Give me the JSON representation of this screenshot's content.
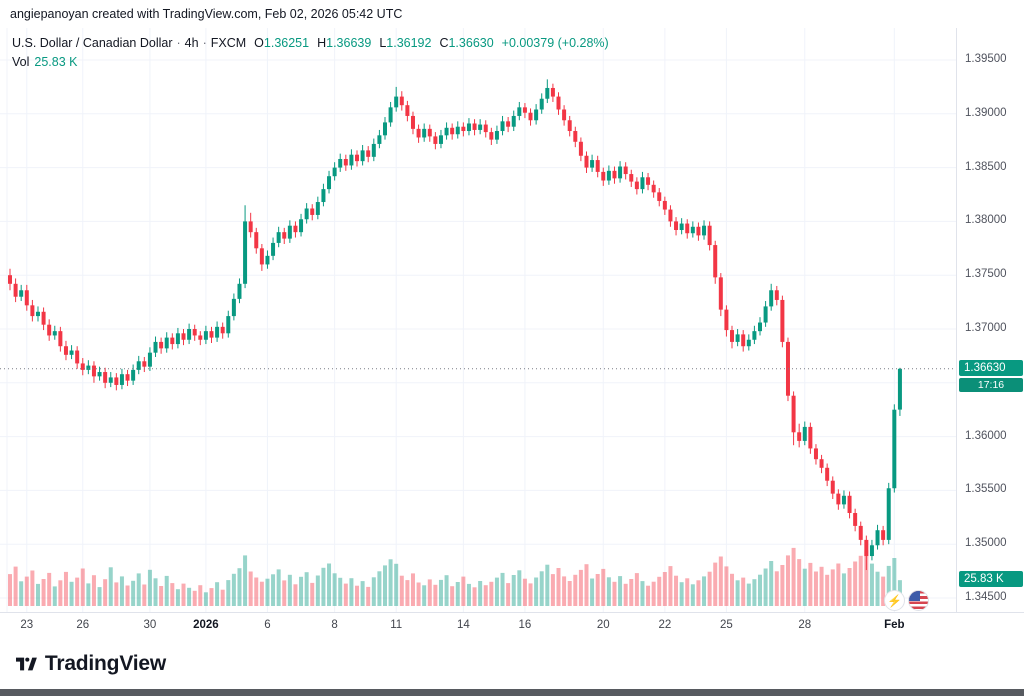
{
  "attribution": "angiepanoyan created with TradingView.com, Feb 02, 2026 05:42 UTC",
  "legend": {
    "symbol": "U.S. Dollar / Canadian Dollar",
    "sep": "·",
    "interval": "4h",
    "exchange": "FXCM",
    "ohlc": {
      "o_label": "O",
      "o": "1.36251",
      "h_label": "H",
      "h": "1.36639",
      "l_label": "L",
      "l": "1.36192",
      "c_label": "C",
      "c": "1.36630",
      "change": "+0.00379 (+0.28%)"
    },
    "vol_label": "Vol",
    "vol_value": "25.83 K"
  },
  "badges": {
    "price": "1.36630",
    "countdown": "17:16",
    "volume": "25.83 K"
  },
  "price_axis": {
    "labels": [
      {
        "text": "1.39500",
        "value": 1.395
      },
      {
        "text": "1.39000",
        "value": 1.39
      },
      {
        "text": "1.38500",
        "value": 1.385
      },
      {
        "text": "1.38000",
        "value": 1.38
      },
      {
        "text": "1.37500",
        "value": 1.375
      },
      {
        "text": "1.37000",
        "value": 1.37
      },
      {
        "text": "1.36000",
        "value": 1.36
      },
      {
        "text": "1.35500",
        "value": 1.355
      },
      {
        "text": "1.35000",
        "value": 1.35
      },
      {
        "text": "1.34500",
        "value": 1.345
      }
    ]
  },
  "colors": {
    "up": "#089981",
    "down": "#f23645",
    "vol_up": "rgba(8,153,129,0.42)",
    "vol_down": "rgba(242,54,69,0.42)",
    "grid": "#f0f3fa",
    "price_line": "#787b86",
    "badge": "#089981"
  },
  "footer": {
    "brand": "TradingView"
  },
  "icons": {
    "lightning": "⚡"
  },
  "chart_data": {
    "type": "candlestick+volume",
    "title": "U.S. Dollar / Canadian Dollar · 4h · FXCM",
    "symbol": "USD/CAD",
    "interval": "4h",
    "exchange": "FXCM",
    "last_ohlc": {
      "open": 1.36251,
      "high": 1.36639,
      "low": 1.36192,
      "close": 1.3663,
      "change": "+0.00379 (+0.28%)"
    },
    "last_volume_k": 25.83,
    "price_line": 1.3663,
    "countdown": "17:16",
    "ylim": [
      1.3437,
      1.3981
    ],
    "grid_step": 0.005,
    "grid_prices": [
      1.395,
      1.39,
      1.385,
      1.38,
      1.375,
      1.37,
      1.365,
      1.36,
      1.355,
      1.35,
      1.345
    ],
    "x_labels": [
      {
        "text": "23",
        "i": 3
      },
      {
        "text": "26",
        "i": 13
      },
      {
        "text": "30",
        "i": 25
      },
      {
        "text": "2026",
        "i": 35,
        "bold": true
      },
      {
        "text": "6",
        "i": 46
      },
      {
        "text": "8",
        "i": 58
      },
      {
        "text": "11",
        "i": 69
      },
      {
        "text": "14",
        "i": 81
      },
      {
        "text": "16",
        "i": 92
      },
      {
        "text": "20",
        "i": 106
      },
      {
        "text": "22",
        "i": 117
      },
      {
        "text": "25",
        "i": 128
      },
      {
        "text": "28",
        "i": 142
      },
      {
        "text": "Feb",
        "i": 158,
        "bold": true
      }
    ],
    "candles": [
      [
        1.375,
        1.3756,
        1.3736,
        1.3742
      ],
      [
        1.3742,
        1.3747,
        1.3725,
        1.373
      ],
      [
        1.373,
        1.3741,
        1.3726,
        1.3736
      ],
      [
        1.3736,
        1.3741,
        1.3717,
        1.3722
      ],
      [
        1.3722,
        1.3727,
        1.3707,
        1.3712
      ],
      [
        1.3712,
        1.3721,
        1.3707,
        1.3716
      ],
      [
        1.3716,
        1.372,
        1.3699,
        1.3704
      ],
      [
        1.3704,
        1.3709,
        1.3689,
        1.3694
      ],
      [
        1.3694,
        1.3703,
        1.369,
        1.3698
      ],
      [
        1.3698,
        1.3702,
        1.3679,
        1.3684
      ],
      [
        1.3684,
        1.3689,
        1.3671,
        1.3676
      ],
      [
        1.3676,
        1.3685,
        1.3672,
        1.368
      ],
      [
        1.368,
        1.3684,
        1.3663,
        1.3668
      ],
      [
        1.3668,
        1.3673,
        1.3657,
        1.3662
      ],
      [
        1.3662,
        1.3671,
        1.3658,
        1.3666
      ],
      [
        1.3666,
        1.367,
        1.365,
        1.3656
      ],
      [
        1.3656,
        1.3665,
        1.3652,
        1.366
      ],
      [
        1.366,
        1.3664,
        1.3645,
        1.365
      ],
      [
        1.365,
        1.366,
        1.3646,
        1.3655
      ],
      [
        1.3655,
        1.3659,
        1.3643,
        1.3648
      ],
      [
        1.3648,
        1.3663,
        1.3644,
        1.3658
      ],
      [
        1.3658,
        1.3662,
        1.3647,
        1.3652
      ],
      [
        1.3652,
        1.3667,
        1.3648,
        1.3662
      ],
      [
        1.3662,
        1.3675,
        1.3658,
        1.367
      ],
      [
        1.367,
        1.3674,
        1.366,
        1.3665
      ],
      [
        1.3665,
        1.3683,
        1.3661,
        1.3678
      ],
      [
        1.3678,
        1.3693,
        1.3674,
        1.3688
      ],
      [
        1.3688,
        1.3692,
        1.3677,
        1.3682
      ],
      [
        1.3682,
        1.3697,
        1.3678,
        1.3692
      ],
      [
        1.3692,
        1.3696,
        1.3681,
        1.3686
      ],
      [
        1.3686,
        1.3701,
        1.3682,
        1.3696
      ],
      [
        1.3696,
        1.37,
        1.3685,
        1.369
      ],
      [
        1.369,
        1.3705,
        1.3686,
        1.37
      ],
      [
        1.37,
        1.3704,
        1.3689,
        1.3694
      ],
      [
        1.3694,
        1.3698,
        1.3685,
        1.369
      ],
      [
        1.369,
        1.3703,
        1.3686,
        1.3698
      ],
      [
        1.3698,
        1.3702,
        1.3687,
        1.3692
      ],
      [
        1.3692,
        1.3707,
        1.3688,
        1.3702
      ],
      [
        1.3702,
        1.3706,
        1.3691,
        1.3696
      ],
      [
        1.3696,
        1.3717,
        1.3692,
        1.3712
      ],
      [
        1.3712,
        1.3733,
        1.3708,
        1.3728
      ],
      [
        1.3728,
        1.3747,
        1.3724,
        1.3742
      ],
      [
        1.3742,
        1.3815,
        1.3738,
        1.38
      ],
      [
        1.38,
        1.3808,
        1.3785,
        1.379
      ],
      [
        1.379,
        1.3794,
        1.377,
        1.3775
      ],
      [
        1.3775,
        1.3779,
        1.3754,
        1.376
      ],
      [
        1.376,
        1.3773,
        1.3756,
        1.3768
      ],
      [
        1.3768,
        1.3785,
        1.3764,
        1.378
      ],
      [
        1.378,
        1.3795,
        1.3776,
        1.379
      ],
      [
        1.379,
        1.3794,
        1.3779,
        1.3784
      ],
      [
        1.3784,
        1.3801,
        1.378,
        1.3796
      ],
      [
        1.3796,
        1.38,
        1.3785,
        1.379
      ],
      [
        1.379,
        1.3807,
        1.3786,
        1.3802
      ],
      [
        1.3802,
        1.3817,
        1.3798,
        1.3812
      ],
      [
        1.3812,
        1.3816,
        1.3801,
        1.3806
      ],
      [
        1.3806,
        1.3823,
        1.3802,
        1.3818
      ],
      [
        1.3818,
        1.3835,
        1.3814,
        1.383
      ],
      [
        1.383,
        1.3847,
        1.3826,
        1.3842
      ],
      [
        1.3842,
        1.3855,
        1.3838,
        1.385
      ],
      [
        1.385,
        1.3863,
        1.3846,
        1.3858
      ],
      [
        1.3858,
        1.3862,
        1.3847,
        1.3852
      ],
      [
        1.3852,
        1.3867,
        1.3848,
        1.3862
      ],
      [
        1.3862,
        1.3866,
        1.3851,
        1.3856
      ],
      [
        1.3856,
        1.3871,
        1.3852,
        1.3866
      ],
      [
        1.3866,
        1.387,
        1.3855,
        1.386
      ],
      [
        1.386,
        1.3877,
        1.3856,
        1.3872
      ],
      [
        1.3872,
        1.3885,
        1.3868,
        1.388
      ],
      [
        1.388,
        1.3897,
        1.3876,
        1.3892
      ],
      [
        1.3892,
        1.3911,
        1.3888,
        1.3906
      ],
      [
        1.3906,
        1.3925,
        1.3902,
        1.3916
      ],
      [
        1.3916,
        1.3921,
        1.3903,
        1.3908
      ],
      [
        1.3908,
        1.3912,
        1.3893,
        1.3898
      ],
      [
        1.3898,
        1.3902,
        1.3881,
        1.3886
      ],
      [
        1.3886,
        1.389,
        1.3873,
        1.3878
      ],
      [
        1.3878,
        1.3891,
        1.3874,
        1.3886
      ],
      [
        1.3886,
        1.389,
        1.3874,
        1.3879
      ],
      [
        1.3879,
        1.3883,
        1.3867,
        1.3872
      ],
      [
        1.3872,
        1.3885,
        1.3868,
        1.388
      ],
      [
        1.388,
        1.3892,
        1.3876,
        1.3887
      ],
      [
        1.3887,
        1.3891,
        1.3876,
        1.3881
      ],
      [
        1.3881,
        1.3893,
        1.3877,
        1.3888
      ],
      [
        1.3888,
        1.3892,
        1.3879,
        1.3884
      ],
      [
        1.3884,
        1.3896,
        1.388,
        1.3891
      ],
      [
        1.3891,
        1.3895,
        1.388,
        1.3885
      ],
      [
        1.3885,
        1.3895,
        1.3881,
        1.389
      ],
      [
        1.389,
        1.3894,
        1.3878,
        1.3883
      ],
      [
        1.3883,
        1.3887,
        1.3871,
        1.3876
      ],
      [
        1.3876,
        1.3889,
        1.3872,
        1.3884
      ],
      [
        1.3884,
        1.3898,
        1.388,
        1.3893
      ],
      [
        1.3893,
        1.3897,
        1.3883,
        1.3888
      ],
      [
        1.3888,
        1.3903,
        1.3884,
        1.3898
      ],
      [
        1.3898,
        1.3911,
        1.3894,
        1.3906
      ],
      [
        1.3906,
        1.391,
        1.3896,
        1.3901
      ],
      [
        1.3901,
        1.3905,
        1.3889,
        1.3894
      ],
      [
        1.3894,
        1.3909,
        1.389,
        1.3904
      ],
      [
        1.3904,
        1.3919,
        1.39,
        1.3914
      ],
      [
        1.3914,
        1.3932,
        1.391,
        1.3924
      ],
      [
        1.3924,
        1.3928,
        1.3911,
        1.3916
      ],
      [
        1.3916,
        1.392,
        1.3899,
        1.3904
      ],
      [
        1.3904,
        1.3908,
        1.3889,
        1.3894
      ],
      [
        1.3894,
        1.3898,
        1.3879,
        1.3884
      ],
      [
        1.3884,
        1.3888,
        1.3869,
        1.3874
      ],
      [
        1.3874,
        1.3878,
        1.3856,
        1.3861
      ],
      [
        1.3861,
        1.3865,
        1.3845,
        1.385
      ],
      [
        1.385,
        1.3862,
        1.3846,
        1.3857
      ],
      [
        1.3857,
        1.3861,
        1.3841,
        1.3846
      ],
      [
        1.3846,
        1.385,
        1.3833,
        1.3838
      ],
      [
        1.3838,
        1.3852,
        1.3834,
        1.3847
      ],
      [
        1.3847,
        1.3851,
        1.3835,
        1.384
      ],
      [
        1.384,
        1.3856,
        1.3836,
        1.3851
      ],
      [
        1.3851,
        1.3855,
        1.3839,
        1.3844
      ],
      [
        1.3844,
        1.3848,
        1.3832,
        1.3837
      ],
      [
        1.3837,
        1.3841,
        1.3825,
        1.383
      ],
      [
        1.383,
        1.3846,
        1.3826,
        1.3841
      ],
      [
        1.3841,
        1.3845,
        1.3829,
        1.3834
      ],
      [
        1.3834,
        1.3838,
        1.3822,
        1.3827
      ],
      [
        1.3827,
        1.3831,
        1.3814,
        1.3819
      ],
      [
        1.3819,
        1.3823,
        1.3806,
        1.3811
      ],
      [
        1.3811,
        1.3815,
        1.3795,
        1.38
      ],
      [
        1.38,
        1.3804,
        1.3787,
        1.3792
      ],
      [
        1.3792,
        1.3803,
        1.3788,
        1.3798
      ],
      [
        1.3798,
        1.3802,
        1.3784,
        1.3789
      ],
      [
        1.3789,
        1.38,
        1.3785,
        1.3795
      ],
      [
        1.3795,
        1.3799,
        1.3782,
        1.3787
      ],
      [
        1.3787,
        1.3801,
        1.3783,
        1.3796
      ],
      [
        1.3796,
        1.38,
        1.3773,
        1.3778
      ],
      [
        1.3778,
        1.3782,
        1.3742,
        1.3748
      ],
      [
        1.3748,
        1.3752,
        1.3712,
        1.3718
      ],
      [
        1.3718,
        1.3722,
        1.3693,
        1.3699
      ],
      [
        1.3699,
        1.3703,
        1.3682,
        1.3688
      ],
      [
        1.3688,
        1.37,
        1.3684,
        1.3695
      ],
      [
        1.3695,
        1.3699,
        1.3679,
        1.3684
      ],
      [
        1.3684,
        1.3695,
        1.368,
        1.369
      ],
      [
        1.369,
        1.3703,
        1.3686,
        1.3698
      ],
      [
        1.3698,
        1.3711,
        1.3694,
        1.3706
      ],
      [
        1.3706,
        1.3726,
        1.3702,
        1.3721
      ],
      [
        1.3721,
        1.3742,
        1.3717,
        1.3736
      ],
      [
        1.3736,
        1.374,
        1.3722,
        1.3727
      ],
      [
        1.3727,
        1.3731,
        1.3683,
        1.3688
      ],
      [
        1.3688,
        1.3692,
        1.3633,
        1.3638
      ],
      [
        1.3638,
        1.3642,
        1.3592,
        1.3604
      ],
      [
        1.3604,
        1.3612,
        1.359,
        1.3596
      ],
      [
        1.3596,
        1.3614,
        1.3592,
        1.3609
      ],
      [
        1.3609,
        1.3613,
        1.3584,
        1.3589
      ],
      [
        1.3589,
        1.3593,
        1.3574,
        1.3579
      ],
      [
        1.3579,
        1.3583,
        1.3566,
        1.3571
      ],
      [
        1.3571,
        1.3575,
        1.3554,
        1.3559
      ],
      [
        1.3559,
        1.3563,
        1.3542,
        1.3547
      ],
      [
        1.3547,
        1.3551,
        1.3532,
        1.3537
      ],
      [
        1.3537,
        1.355,
        1.3533,
        1.3545
      ],
      [
        1.3545,
        1.3549,
        1.3524,
        1.3529
      ],
      [
        1.3529,
        1.3533,
        1.3512,
        1.3517
      ],
      [
        1.3517,
        1.3521,
        1.3499,
        1.3504
      ],
      [
        1.3504,
        1.3508,
        1.3476,
        1.3489
      ],
      [
        1.3489,
        1.3504,
        1.3485,
        1.3499
      ],
      [
        1.3499,
        1.3518,
        1.3495,
        1.3513
      ],
      [
        1.3513,
        1.3517,
        1.3499,
        1.3504
      ],
      [
        1.3504,
        1.3557,
        1.35,
        1.3552
      ],
      [
        1.3552,
        1.363,
        1.3548,
        1.3625
      ],
      [
        1.36251,
        1.36639,
        1.36192,
        1.3663
      ]
    ],
    "volumes_k": [
      31.9,
      39.4,
      24.7,
      29.4,
      35.5,
      22.1,
      27.0,
      33.1,
      19.6,
      25.7,
      34.1,
      24.2,
      28.4,
      37.5,
      22.6,
      30.8,
      18.9,
      26.8,
      38.7,
      23.6,
      29.6,
      20.5,
      25.2,
      32.6,
      21.5,
      36.2,
      27.7,
      20.0,
      30.1,
      22.9,
      16.8,
      22.4,
      18.2,
      15.2,
      20.8,
      13.7,
      17.9,
      23.8,
      16.3,
      25.9,
      32.2,
      37.8,
      50.6,
      34.5,
      28.5,
      24.3,
      27.3,
      31.7,
      36.6,
      25.6,
      31.2,
      21.7,
      29.2,
      33.8,
      23.1,
      30.5,
      38.2,
      42.5,
      32.7,
      28.2,
      22.4,
      27.8,
      20.3,
      24.9,
      19.1,
      28.7,
      34.7,
      40.6,
      46.7,
      42.2,
      30.3,
      25.9,
      32.6,
      23.5,
      20.7,
      26.6,
      21.2,
      26.1,
      30.8,
      19.8,
      24.0,
      29.4,
      22.1,
      18.7,
      25.0,
      20.8,
      24.2,
      28.4,
      33.1,
      22.9,
      31.0,
      35.7,
      27.3,
      22.6,
      28.5,
      34.7,
      41.3,
      31.9,
      38.0,
      29.6,
      25.0,
      31.2,
      36.1,
      41.8,
      27.5,
      32.0,
      37.1,
      28.7,
      24.2,
      29.9,
      22.2,
      27.0,
      32.9,
      24.9,
      20.3,
      24.3,
      29.2,
      34.0,
      39.9,
      30.3,
      23.8,
      27.7,
      21.7,
      25.7,
      29.6,
      34.3,
      43.4,
      49.5,
      39.6,
      32.2,
      25.7,
      28.4,
      22.4,
      26.8,
      31.3,
      37.5,
      45.0,
      34.7,
      41.0,
      50.6,
      58.1,
      46.9,
      37.3,
      43.1,
      34.5,
      39.2,
      31.2,
      36.6,
      42.5,
      32.6,
      38.0,
      44.5,
      50.2,
      55.7,
      42.4,
      34.3,
      29.4,
      40.1,
      48.0,
      25.83
    ]
  }
}
